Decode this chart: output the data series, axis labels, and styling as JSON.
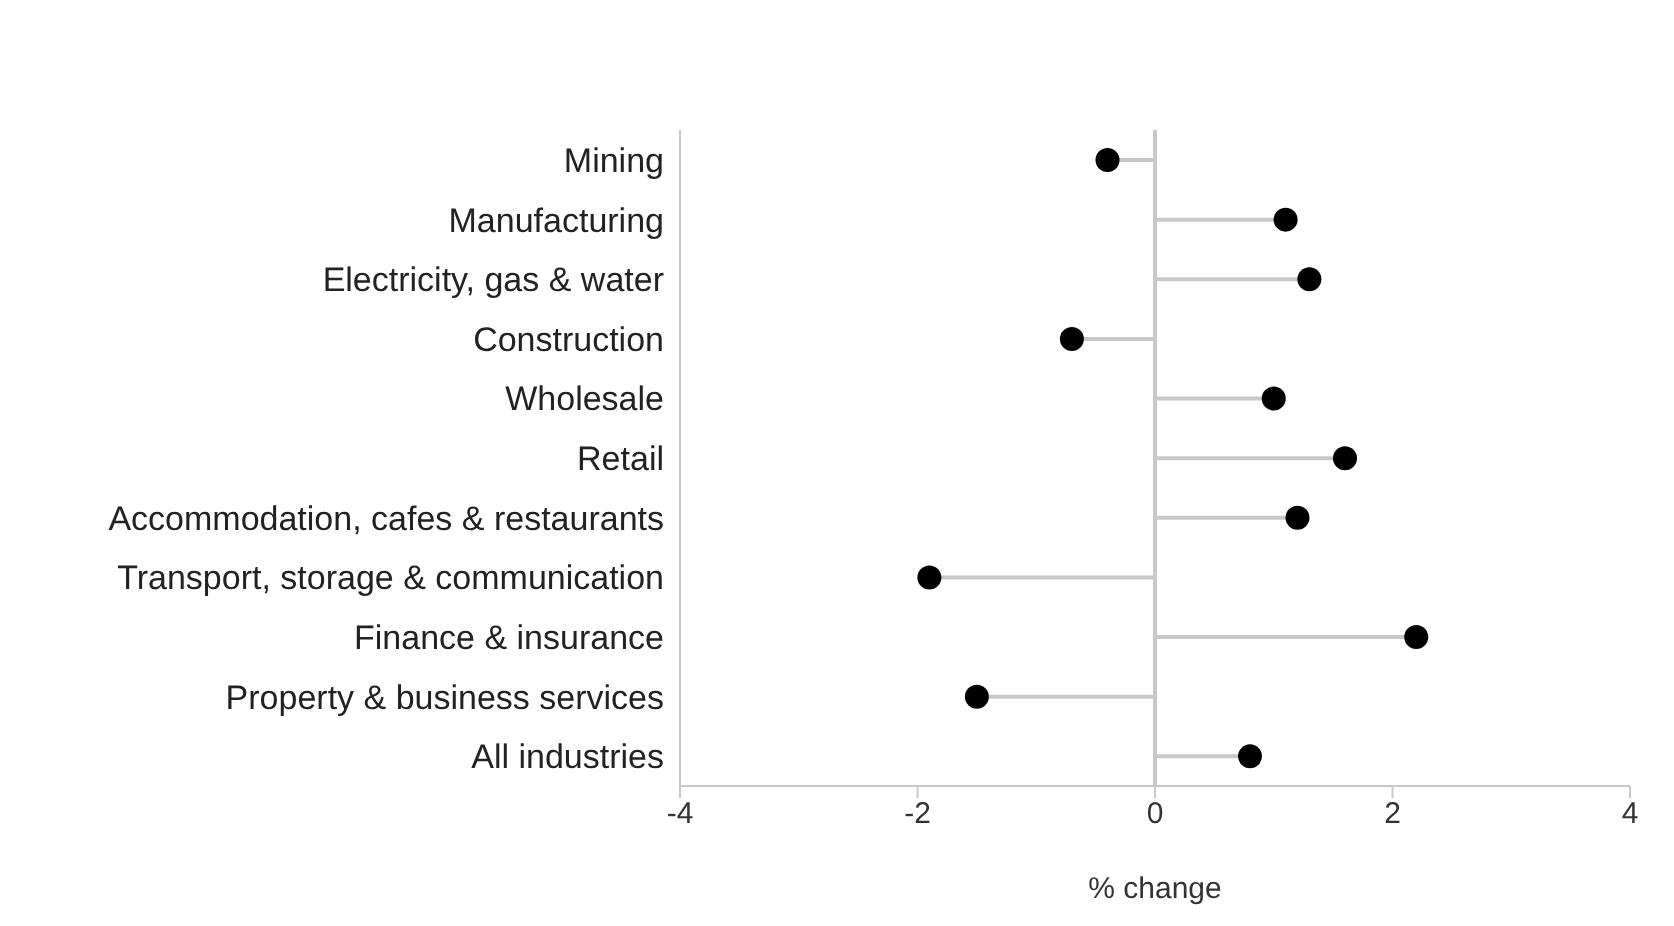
{
  "chart_data": {
    "type": "lollipop",
    "orientation": "horizontal",
    "xlabel": "% change",
    "categories": [
      "Mining",
      "Manufacturing",
      "Electricity, gas & water",
      "Construction",
      "Wholesale",
      "Retail",
      "Accommodation, cafes & restaurants",
      "Transport, storage & communication",
      "Finance & insurance",
      "Property & business services",
      "All industries"
    ],
    "values": [
      -0.4,
      1.1,
      1.3,
      -0.7,
      1.0,
      1.6,
      1.2,
      -1.9,
      2.2,
      -1.5,
      0.8
    ],
    "color": "#000000",
    "xlim": [
      -4,
      4
    ],
    "xticks": [
      -4,
      -2,
      0,
      2,
      4
    ],
    "marker": "circle"
  }
}
